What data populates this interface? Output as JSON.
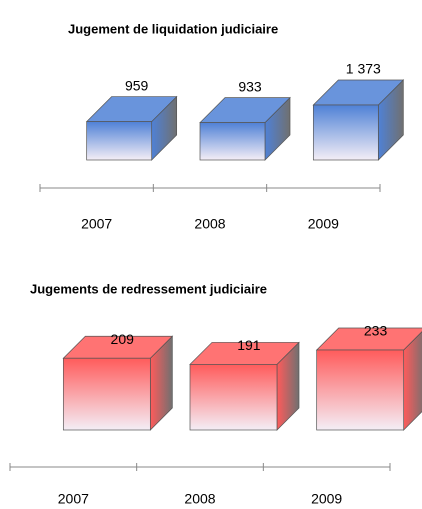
{
  "chart_data": [
    {
      "type": "bar3d",
      "title": "Jugement de liquidation judiciaire",
      "categories": [
        "2007",
        "2008",
        "2009"
      ],
      "values": [
        959,
        933,
        1373
      ],
      "value_labels": [
        "959",
        "933",
        "1 373"
      ],
      "color": "#4f81d6"
    },
    {
      "type": "bar3d",
      "title": "Jugements de redressement judiciaire",
      "categories": [
        "2007",
        "2008",
        "2009"
      ],
      "values": [
        209,
        191,
        233
      ],
      "value_labels": [
        "209",
        "191",
        "233"
      ],
      "color": "#ff5b5b"
    }
  ]
}
